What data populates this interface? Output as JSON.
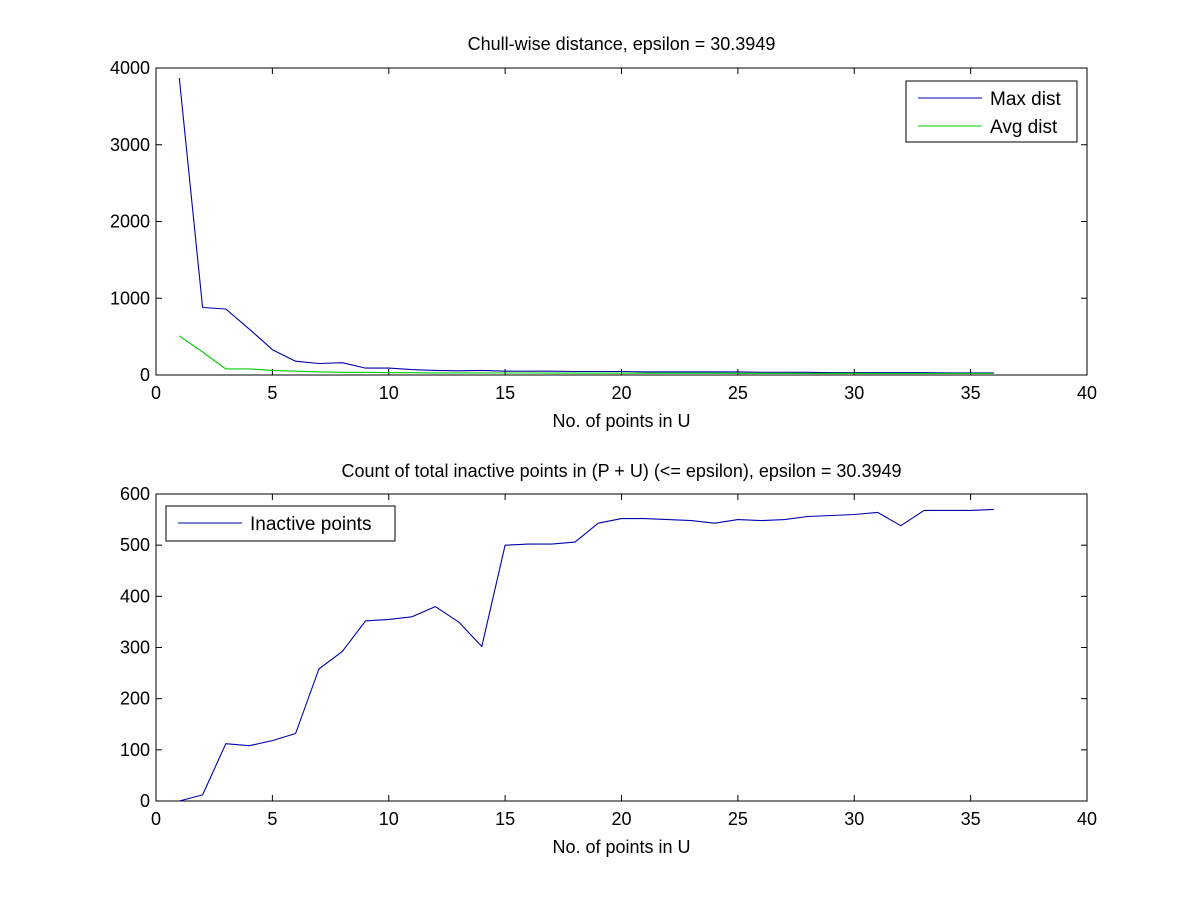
{
  "chart_data": [
    {
      "type": "line",
      "title": "Chull-wise distance, epsilon = 30.3949",
      "xlabel": "No. of points in U",
      "ylabel": "",
      "xlim": [
        0,
        40
      ],
      "ylim": [
        0,
        4000
      ],
      "xticks": [
        0,
        5,
        10,
        15,
        20,
        25,
        30,
        35,
        40
      ],
      "yticks": [
        0,
        1000,
        2000,
        3000,
        4000
      ],
      "grid": false,
      "legend_position": "top-right",
      "x": [
        1,
        2,
        3,
        4,
        5,
        6,
        7,
        8,
        9,
        10,
        11,
        12,
        13,
        14,
        15,
        16,
        17,
        18,
        19,
        20,
        21,
        22,
        23,
        24,
        25,
        26,
        27,
        28,
        29,
        30,
        31,
        32,
        33,
        34,
        35,
        36
      ],
      "series": [
        {
          "name": "Max dist",
          "color": "#0000aa",
          "values": [
            3870,
            880,
            860,
            600,
            330,
            180,
            150,
            160,
            90,
            90,
            70,
            60,
            55,
            60,
            50,
            50,
            50,
            45,
            45,
            45,
            40,
            40,
            40,
            40,
            40,
            35,
            35,
            35,
            30,
            30,
            30,
            30,
            30,
            28,
            28,
            28
          ]
        },
        {
          "name": "Avg dist",
          "color": "#00cc00",
          "values": [
            510,
            300,
            80,
            80,
            60,
            50,
            40,
            35,
            35,
            30,
            30,
            28,
            28,
            28,
            26,
            26,
            25,
            25,
            25,
            24,
            24,
            23,
            23,
            23,
            22,
            22,
            22,
            21,
            21,
            21,
            20,
            20,
            20,
            20,
            19,
            19
          ]
        }
      ]
    },
    {
      "type": "line",
      "title": "Count of total inactive points in (P + U) (<= epsilon), epsilon = 30.3949",
      "xlabel": "No. of points in U",
      "ylabel": "",
      "xlim": [
        0,
        40
      ],
      "ylim": [
        0,
        600
      ],
      "xticks": [
        0,
        5,
        10,
        15,
        20,
        25,
        30,
        35,
        40
      ],
      "yticks": [
        0,
        100,
        200,
        300,
        400,
        500,
        600
      ],
      "grid": false,
      "legend_position": "top-left",
      "x": [
        1,
        2,
        3,
        4,
        5,
        6,
        7,
        8,
        9,
        10,
        11,
        12,
        13,
        14,
        15,
        16,
        17,
        18,
        19,
        20,
        21,
        22,
        23,
        24,
        25,
        26,
        27,
        28,
        29,
        30,
        31,
        32,
        33,
        34,
        35,
        36
      ],
      "series": [
        {
          "name": "Inactive points",
          "color": "#0000aa",
          "values": [
            0,
            12,
            112,
            108,
            118,
            132,
            258,
            292,
            352,
            355,
            360,
            380,
            350,
            302,
            500,
            502,
            502,
            506,
            543,
            552,
            552,
            550,
            548,
            543,
            550,
            548,
            550,
            556,
            558,
            560,
            564,
            538,
            568,
            568,
            568,
            570
          ]
        }
      ]
    }
  ]
}
